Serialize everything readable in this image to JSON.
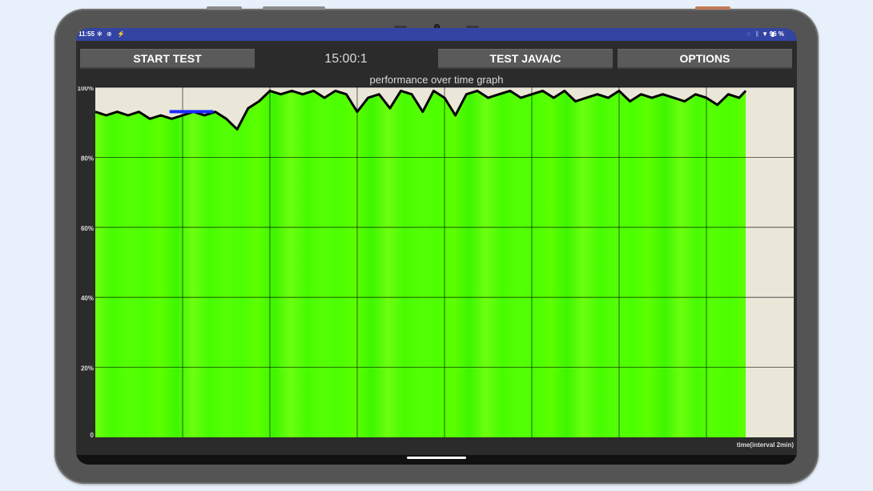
{
  "status_bar": {
    "time": "11:55",
    "battery": "96 %",
    "left_icons": [
      "fan-icon",
      "vpn-icon",
      "charging-off-icon"
    ],
    "right_icons": [
      "mute-icon",
      "bluetooth-icon",
      "wifi-icon",
      "battery-icon"
    ]
  },
  "toolbar": {
    "start_label": "START TEST",
    "timer": "15:00:1",
    "java_label": "TEST JAVA/C",
    "options_label": "OPTIONS"
  },
  "graph": {
    "title": "performance over time graph",
    "y_ticks": [
      "100%",
      "80%",
      "60%",
      "40%",
      "20%",
      "0"
    ],
    "x_label": "time(interval 2min)",
    "fill_color": "#4cff00",
    "line_color": "#000000",
    "background": "#ebe7d8",
    "marker_color": "#1a2cff"
  },
  "chart_data": {
    "type": "area",
    "xlabel": "time(interval 2min)",
    "ylabel": "",
    "ylim": [
      0,
      100
    ],
    "xlim": [
      0,
      16
    ],
    "yticks": [
      0,
      20,
      40,
      60,
      80,
      100
    ],
    "grid": true,
    "series": [
      {
        "x": [
          0,
          0.25,
          0.5,
          0.75,
          1.0,
          1.25,
          1.5,
          1.75,
          2.0,
          2.25,
          2.5,
          2.75,
          3.0,
          3.25,
          3.5,
          3.75,
          4.0,
          4.25,
          4.5,
          4.75,
          5.0,
          5.25,
          5.5,
          5.75,
          6.0,
          6.25,
          6.5,
          6.75,
          7.0,
          7.25,
          7.5,
          7.75,
          8.0,
          8.25,
          8.5,
          8.75,
          9.0,
          9.25,
          9.5,
          9.75,
          10.0,
          10.25,
          10.5,
          10.75,
          11.0,
          11.25,
          11.5,
          11.75,
          12.0,
          12.25,
          12.5,
          12.75,
          13.0,
          13.25,
          13.5,
          13.75,
          14.0,
          14.25,
          14.5,
          14.75,
          14.9
        ],
        "values": [
          93,
          92,
          93,
          92,
          93,
          91,
          92,
          91,
          92,
          93,
          92,
          93,
          91,
          88,
          94,
          96,
          99,
          98,
          99,
          98,
          99,
          97,
          99,
          98,
          93,
          97,
          98,
          94,
          99,
          98,
          93,
          99,
          97,
          92,
          98,
          99,
          97,
          98,
          99,
          97,
          98,
          99,
          97,
          99,
          96,
          97,
          98,
          97,
          99,
          96,
          98,
          97,
          98,
          97,
          96,
          98,
          97,
          95,
          98,
          97,
          99
        ]
      }
    ]
  }
}
